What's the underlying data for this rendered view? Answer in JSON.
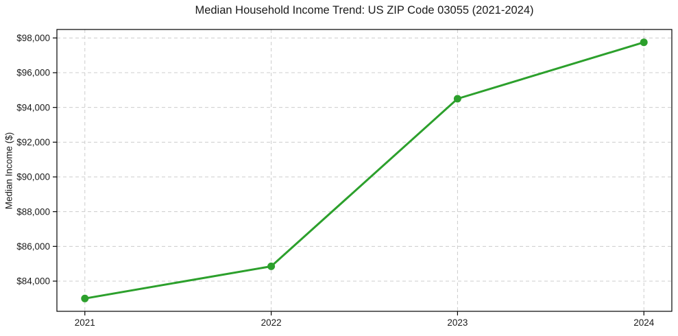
{
  "figure": {
    "title": "Median Household Income Trend: US ZIP Code 03055 (2021-2024)"
  },
  "chart_data": {
    "type": "line",
    "title": "Median Household Income Trend: US ZIP Code 03055 (2021-2024)",
    "xlabel": "",
    "ylabel": "Median Income ($)",
    "x": [
      2021,
      2022,
      2023,
      2024
    ],
    "series": [
      {
        "name": "Median Household Income",
        "values": [
          83000,
          84850,
          94500,
          97750
        ],
        "color": "#2ca02c",
        "marker": "circle"
      }
    ],
    "xticks": [
      {
        "value": 2021,
        "label": "2021"
      },
      {
        "value": 2022,
        "label": "2022"
      },
      {
        "value": 2023,
        "label": "2023"
      },
      {
        "value": 2024,
        "label": "2024"
      }
    ],
    "yticks": [
      {
        "value": 84000,
        "label": "$84,000"
      },
      {
        "value": 86000,
        "label": "$86,000"
      },
      {
        "value": 88000,
        "label": "$88,000"
      },
      {
        "value": 90000,
        "label": "$90,000"
      },
      {
        "value": 92000,
        "label": "$92,000"
      },
      {
        "value": 94000,
        "label": "$94,000"
      },
      {
        "value": 96000,
        "label": "$96,000"
      },
      {
        "value": 98000,
        "label": "$98,000"
      }
    ],
    "xlim": [
      2020.85,
      2024.15
    ],
    "ylim": [
      82262,
      98488
    ],
    "grid": true,
    "grid_style": "dashed",
    "legend_position": "none",
    "colors": {
      "line": "#2ca02c",
      "grid": "#cccccc",
      "spine": "#000000",
      "tick_label": "#1a1a1a",
      "background": "#ffffff"
    }
  }
}
